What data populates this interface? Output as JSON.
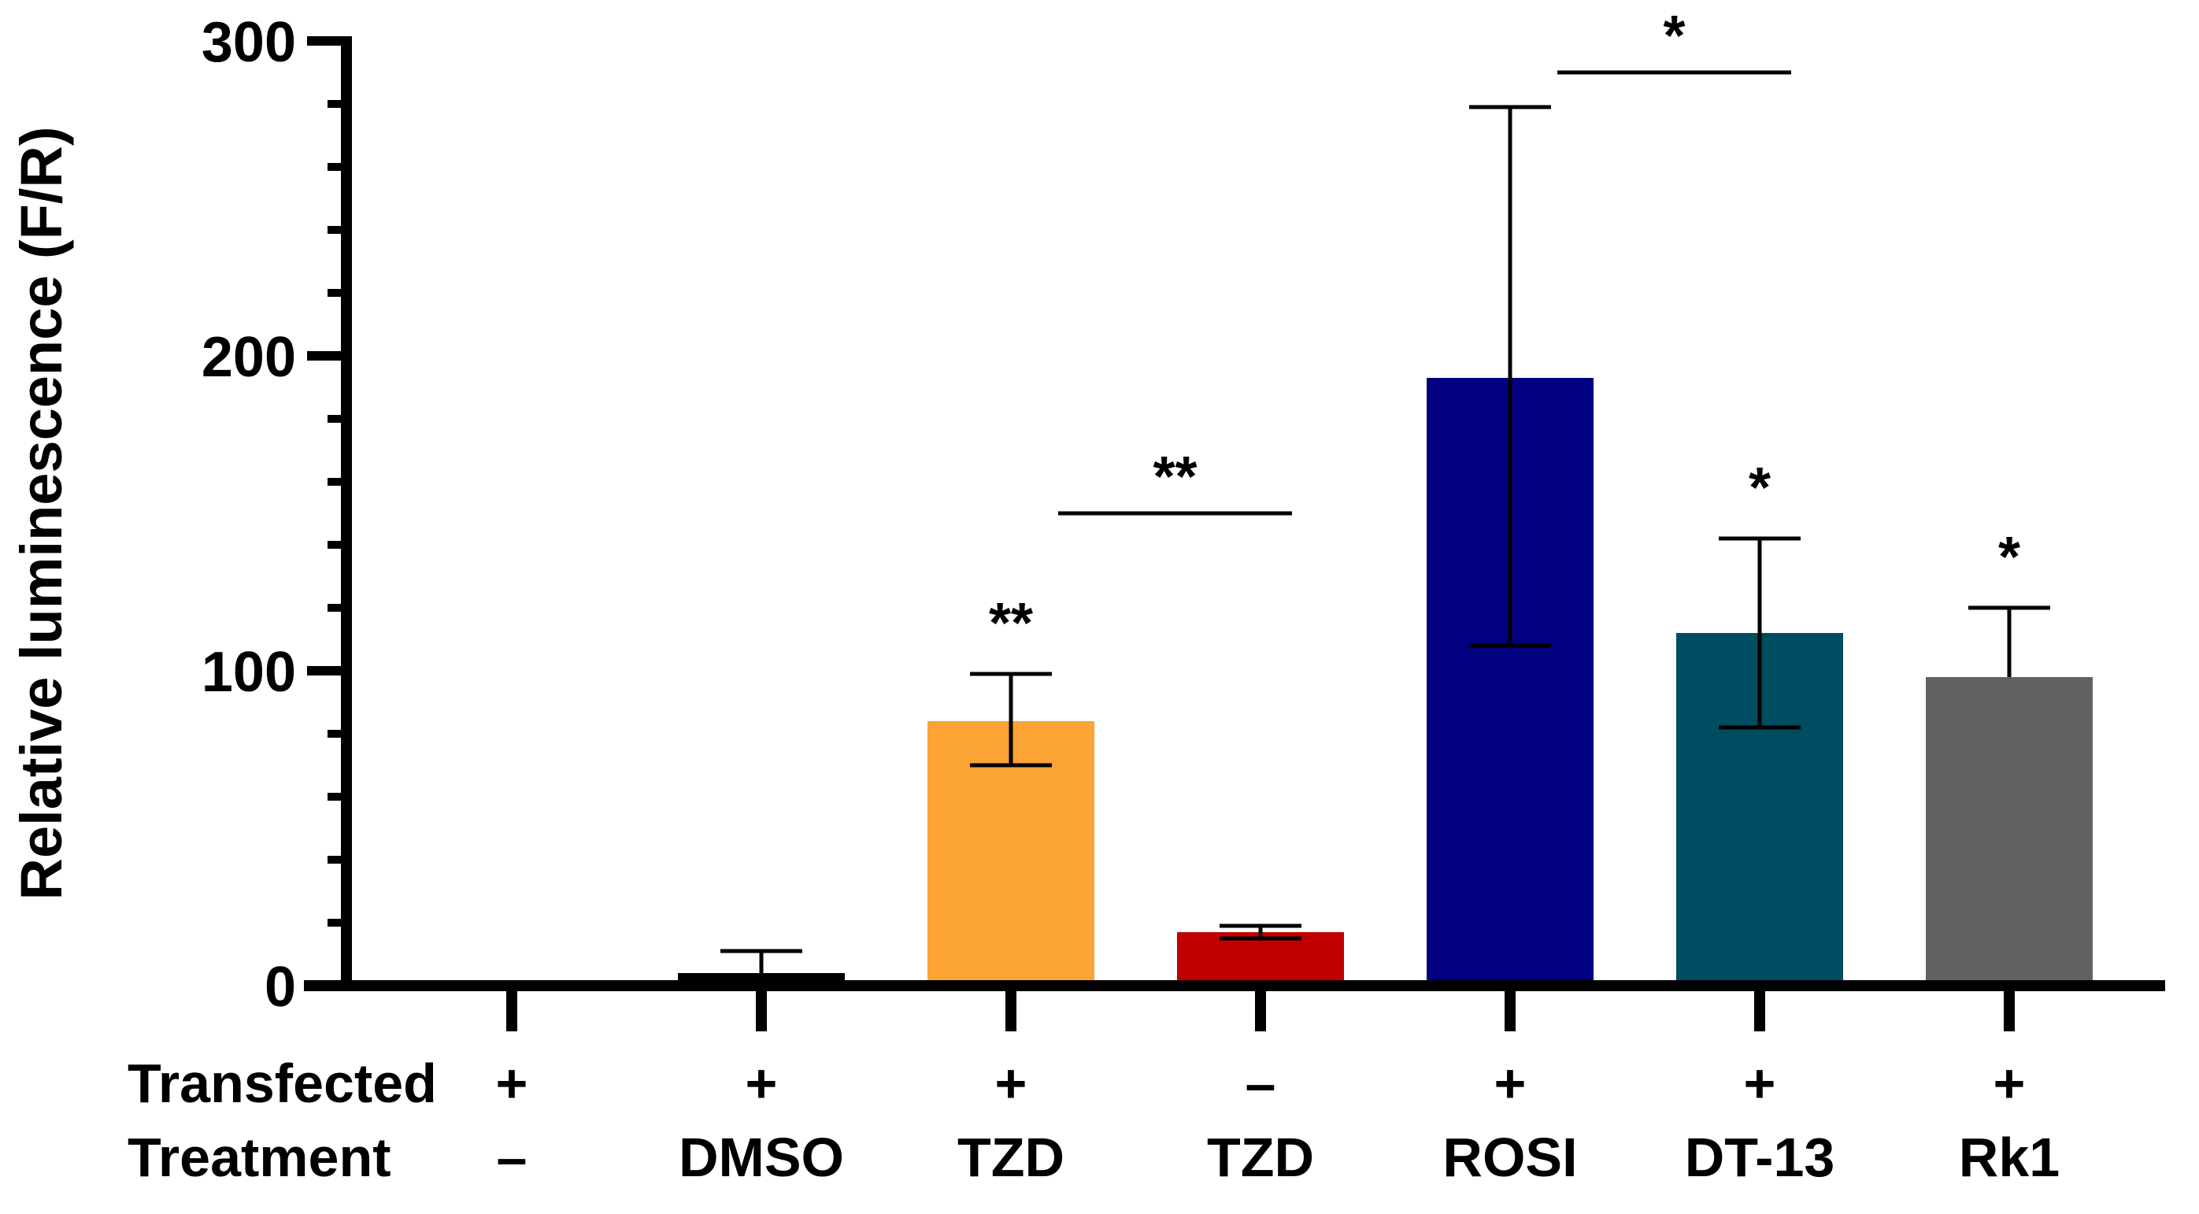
{
  "chart_data": {
    "type": "bar",
    "ylabel": "Relative luminescence (F/R)",
    "ylim": [
      0,
      300
    ],
    "y_major_ticks": [
      0,
      100,
      200,
      300
    ],
    "y_minor_step": 20,
    "grid": false,
    "legend": "none",
    "row_headers": [
      "Transfected",
      "Treatment"
    ],
    "categories": [
      {
        "transfected": "+",
        "treatment": "–",
        "value": 0,
        "error_low": 0,
        "error_high": 0,
        "color": "#000000",
        "annotation": ""
      },
      {
        "transfected": "+",
        "treatment": "DMSO",
        "value": 4,
        "error_low": 4,
        "error_high": 11,
        "color": "#000000",
        "annotation": ""
      },
      {
        "transfected": "+",
        "treatment": "TZD",
        "value": 84,
        "error_low": 70,
        "error_high": 99,
        "color": "#FBA334",
        "annotation": "**"
      },
      {
        "transfected": "–",
        "treatment": "TZD",
        "value": 17,
        "error_low": 15,
        "error_high": 19,
        "color": "#C00000",
        "annotation": ""
      },
      {
        "transfected": "+",
        "treatment": "ROSI",
        "value": 193,
        "error_low": 108,
        "error_high": 279,
        "color": "#010080",
        "annotation": ""
      },
      {
        "transfected": "+",
        "treatment": "DT-13",
        "value": 112,
        "error_low": 82,
        "error_high": 142,
        "color": "#004C60",
        "annotation": "*"
      },
      {
        "transfected": "+",
        "treatment": "Rk1",
        "value": 98,
        "error_low": 98,
        "error_high": 120,
        "color": "#616161",
        "annotation": "*"
      }
    ],
    "comparisons": [
      {
        "from": 2,
        "to": 3,
        "y": 150,
        "label": "**"
      },
      {
        "from": 4,
        "to": 5,
        "y": 290,
        "label": "*"
      }
    ]
  }
}
